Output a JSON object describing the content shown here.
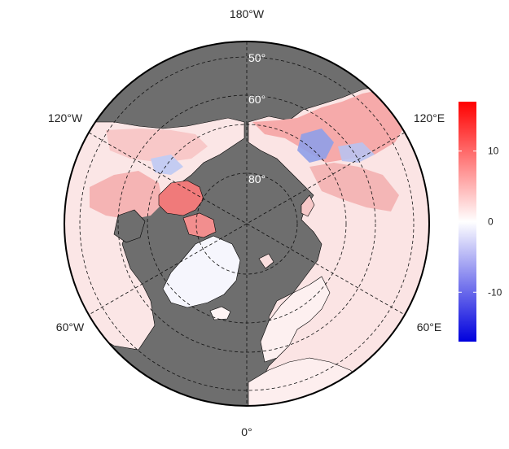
{
  "map": {
    "projection": "north-polar-stereographic",
    "ocean_color": "#6e6e6e",
    "land_border_color": "#000000",
    "graticule_style": "dashed",
    "longitude_labels": [
      {
        "id": "lon-180w",
        "text": "180°W"
      },
      {
        "id": "lon-120w",
        "text": "120°W"
      },
      {
        "id": "lon-60w",
        "text": "60°W"
      },
      {
        "id": "lon-0",
        "text": "0°"
      },
      {
        "id": "lon-60e",
        "text": "60°E"
      },
      {
        "id": "lon-120e",
        "text": "120°E"
      }
    ],
    "latitude_labels": [
      {
        "id": "lat-50",
        "text": "50°"
      },
      {
        "id": "lat-60",
        "text": "60°"
      },
      {
        "id": "lat-80",
        "text": "80°"
      }
    ]
  },
  "colorbar": {
    "min": -17,
    "max": 17,
    "low_color": "#0000dd",
    "mid_color": "#ffffff",
    "high_color": "#ff0000",
    "ticks": [
      {
        "value": 10,
        "label": "10"
      },
      {
        "value": 0,
        "label": "0"
      },
      {
        "value": -10,
        "label": "-10"
      }
    ]
  }
}
